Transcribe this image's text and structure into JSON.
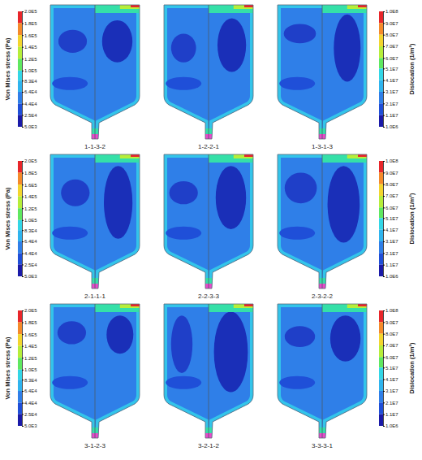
{
  "chart_data": {
    "type": "contour",
    "panels": [
      "1-1-3-2",
      "1-2-2-1",
      "1-3-1-3",
      "2-1-1-1",
      "2-2-3-3",
      "2-3-2-2",
      "3-1-2-3",
      "3-2-1-2",
      "3-3-3-1"
    ],
    "stress_colorbar": {
      "title": "Von Mises stress (Pa)",
      "range": [
        5000,
        200000
      ],
      "ticks": [
        {
          "value": 200000,
          "label": "2.0E5"
        },
        {
          "value": 180000,
          "label": "1.8E5"
        },
        {
          "value": 160000,
          "label": "1.6E5"
        },
        {
          "value": 140000,
          "label": "1.4E5"
        },
        {
          "value": 120000,
          "label": "1.2E5"
        },
        {
          "value": 100000,
          "label": "1.0E5"
        },
        {
          "value": 83000,
          "label": "8.3E4"
        },
        {
          "value": 64000,
          "label": "6.4E4"
        },
        {
          "value": 44000,
          "label": "4.4E4"
        },
        {
          "value": 25000,
          "label": "2.5E4"
        },
        {
          "value": 5000,
          "label": "5.0E3"
        }
      ]
    },
    "dislocation_colorbar": {
      "title": "Dislocation (1/m²)",
      "range": [
        1000000,
        100000000
      ],
      "ticks": [
        {
          "value": 100000000,
          "label": "1.0E8"
        },
        {
          "value": 90000000,
          "label": "9.0E7"
        },
        {
          "value": 80000000,
          "label": "8.0E7"
        },
        {
          "value": 70000000,
          "label": "7.0E7"
        },
        {
          "value": 60000000,
          "label": "6.0E7"
        },
        {
          "value": 51000000,
          "label": "5.1E7"
        },
        {
          "value": 41000000,
          "label": "4.1E7"
        },
        {
          "value": 31000000,
          "label": "3.1E7"
        },
        {
          "value": 21000000,
          "label": "2.1E7"
        },
        {
          "value": 11000000,
          "label": "1.1E7"
        },
        {
          "value": 1000000,
          "label": "1.0E6"
        }
      ]
    }
  }
}
